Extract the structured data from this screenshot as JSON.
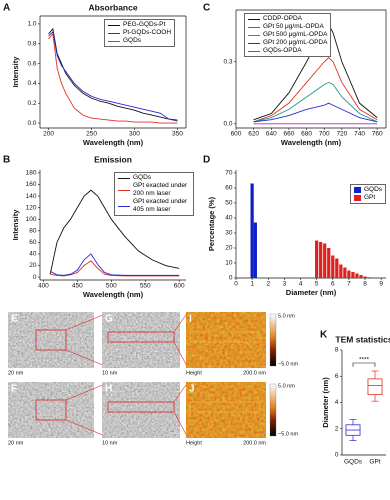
{
  "chart_data": [
    {
      "type": "line",
      "panel": "A",
      "title": "Absorbance",
      "xlabel": "Wavelength (nm)",
      "ylabel": "Intensity",
      "x": [
        200,
        205,
        210,
        215,
        220,
        230,
        240,
        250,
        260,
        270,
        280,
        290,
        300,
        310,
        320,
        330,
        340,
        350
      ],
      "series": [
        {
          "name": "PEG-GQDs-Pt",
          "color": "#111111",
          "values": [
            0.9,
            0.95,
            0.7,
            0.6,
            0.5,
            0.38,
            0.3,
            0.25,
            0.22,
            0.2,
            0.17,
            0.15,
            0.13,
            0.1,
            0.08,
            0.06,
            0.04,
            0.03
          ]
        },
        {
          "name": "Pt-GQDs-COOH",
          "color": "#2b2bd6",
          "values": [
            0.88,
            0.92,
            0.68,
            0.58,
            0.52,
            0.4,
            0.32,
            0.27,
            0.24,
            0.22,
            0.2,
            0.18,
            0.16,
            0.14,
            0.12,
            0.1,
            0.04,
            0.02
          ]
        },
        {
          "name": "GQDs",
          "color": "#e03020",
          "values": [
            0.85,
            0.9,
            0.55,
            0.4,
            0.3,
            0.15,
            0.08,
            0.05,
            0.04,
            0.03,
            0.02,
            0.02,
            0.01,
            0.01,
            0.01,
            0,
            0,
            0
          ]
        }
      ],
      "xlim": [
        190,
        360
      ],
      "xticks": [
        200,
        250,
        300,
        350
      ],
      "ylim": [
        -0.05,
        1.08
      ],
      "yticks": [
        {
          "value": 0,
          "label": "0.0"
        },
        0.2,
        0.4,
        0.6,
        0.8,
        {
          "value": 1,
          "label": "1.0"
        }
      ]
    },
    {
      "type": "line",
      "panel": "C",
      "xlabel": "Wavelength (nm)",
      "x": [
        620,
        640,
        660,
        680,
        690,
        700,
        705,
        710,
        720,
        740,
        760
      ],
      "series": [
        {
          "name": "CDDP-OPDA",
          "color": "#111111",
          "values": [
            0.02,
            0.05,
            0.15,
            0.3,
            0.38,
            0.45,
            0.48,
            0.44,
            0.3,
            0.1,
            0.03
          ]
        },
        {
          "name": "GPt 50 μg/mL-OPDA",
          "color": "#e03020",
          "values": [
            0.01,
            0.04,
            0.1,
            0.2,
            0.25,
            0.3,
            0.32,
            0.3,
            0.2,
            0.07,
            0.02
          ]
        },
        {
          "name": "GPt 500 μg/mL-OPDA",
          "color": "#1a9a8a",
          "values": [
            0.01,
            0.03,
            0.07,
            0.13,
            0.16,
            0.19,
            0.2,
            0.19,
            0.13,
            0.05,
            0.01
          ]
        },
        {
          "name": "GPt 200 μg/mL-OPDA",
          "color": "#2b2bd6",
          "values": [
            0.01,
            0.02,
            0.04,
            0.07,
            0.08,
            0.09,
            0.1,
            0.09,
            0.07,
            0.03,
            0.01
          ]
        },
        {
          "name": "GQDs-OPDA",
          "color": "#c020c0",
          "values": [
            0,
            0,
            0,
            0,
            0,
            0,
            0,
            0,
            0,
            0,
            0
          ]
        }
      ],
      "xlim": [
        600,
        770
      ],
      "xticks": [
        600,
        620,
        640,
        660,
        680,
        700,
        720,
        740,
        760
      ],
      "ylim": [
        -0.02,
        0.55
      ],
      "yticks": [
        {
          "value": 0,
          "label": "0.0"
        },
        0.3
      ]
    },
    {
      "type": "line",
      "panel": "B",
      "title": "Emission",
      "xlabel": "Wavelength (nm)",
      "ylabel": "Intensity",
      "x": [
        410,
        420,
        430,
        440,
        450,
        460,
        470,
        480,
        490,
        500,
        520,
        540,
        560,
        580,
        600
      ],
      "series": [
        {
          "name": "GQDs",
          "color": "#111111",
          "values": [
            5,
            60,
            85,
            100,
            120,
            140,
            150,
            140,
            120,
            100,
            70,
            45,
            30,
            20,
            15
          ]
        },
        {
          "name": "GPt exacted under 200 nm laser",
          "color": "#e03020",
          "values": [
            5,
            3,
            2,
            4,
            8,
            20,
            28,
            15,
            5,
            3,
            2,
            2,
            2,
            2,
            2
          ]
        },
        {
          "name": "GPt exacted under 405 nm laser",
          "color": "#2b2bd6",
          "values": [
            10,
            4,
            3,
            5,
            12,
            30,
            40,
            22,
            8,
            4,
            3,
            3,
            3,
            3,
            3
          ]
        }
      ],
      "xlim": [
        395,
        610
      ],
      "xticks": [
        400,
        450,
        500,
        550,
        600
      ],
      "ylim": [
        -5,
        185
      ],
      "yticks": [
        0,
        20,
        40,
        60,
        80,
        100,
        120,
        140,
        160,
        180
      ]
    },
    {
      "type": "bar",
      "panel": "D",
      "xlabel": "Diameter (nm)",
      "ylabel": "Percentage (%)",
      "series": [
        {
          "name": "GQDs",
          "color": "#1020c8",
          "x": [
            1.0,
            1.2
          ],
          "values": [
            63,
            37
          ]
        },
        {
          "name": "GPt",
          "color": "#e02020",
          "x": [
            5.0,
            5.25,
            5.5,
            5.75,
            6.0,
            6.25,
            6.5,
            6.75,
            7.0,
            7.25,
            7.5,
            7.75,
            8.0,
            8.25
          ],
          "values": [
            25,
            24,
            23,
            20,
            15,
            13,
            9,
            7,
            5,
            4,
            3,
            2,
            1,
            0.5
          ]
        }
      ],
      "xlim": [
        0,
        9.3
      ],
      "xticks": [
        0,
        1,
        2,
        3,
        4,
        5,
        6,
        7,
        8,
        9
      ],
      "ylim": [
        0,
        72
      ],
      "yticks": [
        0,
        10,
        20,
        30,
        40,
        50,
        60,
        70
      ]
    },
    {
      "type": "box",
      "panel": "K",
      "title": "TEM statistics",
      "ylabel": "Diameter (nm)",
      "annotation": "****",
      "categories": [
        "GQDs",
        "GPt"
      ],
      "colors": [
        "#2b2bd6",
        "#e03020"
      ],
      "boxes": [
        {
          "min": 1.1,
          "q1": 1.5,
          "median": 1.9,
          "q3": 2.3,
          "max": 2.7
        },
        {
          "min": 4.1,
          "q1": 4.6,
          "median": 5.3,
          "q3": 5.8,
          "max": 6.4
        }
      ],
      "ylim": [
        0,
        8
      ],
      "yticks": [
        0,
        2,
        4,
        6,
        8
      ]
    }
  ],
  "micrographs": [
    {
      "panel": "E",
      "kind": "tem",
      "scale_bar": "20 nm"
    },
    {
      "panel": "G",
      "kind": "tem",
      "scale_bar": "10 nm"
    },
    {
      "panel": "I",
      "kind": "afm",
      "caption": "Height",
      "scale_bar": "200.0 nm"
    },
    {
      "panel": "F",
      "kind": "tem",
      "scale_bar": "20 nm"
    },
    {
      "panel": "H",
      "kind": "tem",
      "scale_bar": "10 nm"
    },
    {
      "panel": "J",
      "kind": "afm",
      "caption": "Height",
      "scale_bar": "200.0 nm"
    }
  ],
  "colorbar": {
    "max": "5.0 nm",
    "min": "−5.0 nm"
  }
}
